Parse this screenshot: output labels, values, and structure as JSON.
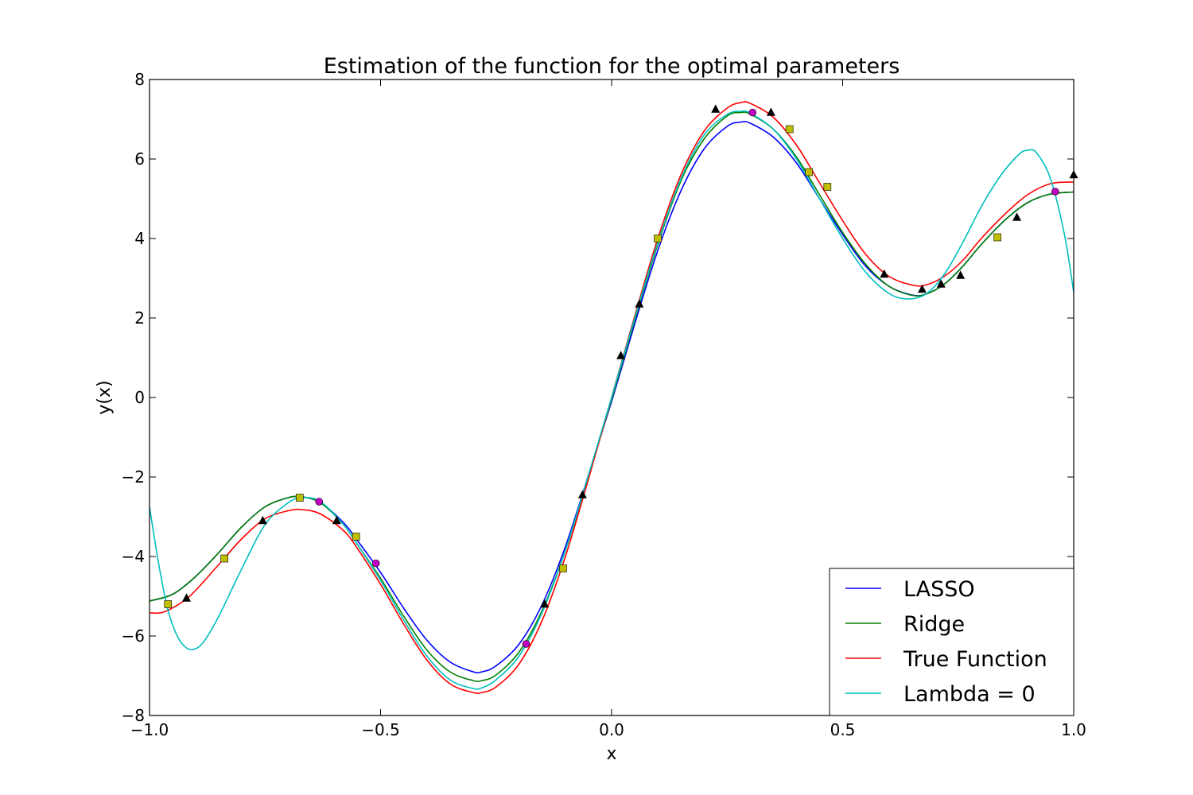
{
  "chart_data": {
    "type": "line",
    "title": "Estimation of the function for the optimal parameters",
    "xlabel": "x",
    "ylabel": "y(x)",
    "xlim": [
      -1.0,
      1.0
    ],
    "ylim": [
      -8,
      8
    ],
    "xticks": [
      -1.0,
      -0.5,
      0.0,
      0.5,
      1.0
    ],
    "xtick_labels": [
      "−1.0",
      "−0.5",
      "0.0",
      "0.5",
      "1.0"
    ],
    "yticks": [
      -8,
      -6,
      -4,
      -2,
      0,
      2,
      4,
      6,
      8
    ],
    "ytick_labels": [
      "−8",
      "−6",
      "−4",
      "−2",
      "0",
      "2",
      "4",
      "6",
      "8"
    ],
    "grid": false,
    "legend": {
      "placement": "lower-right"
    },
    "series": [
      {
        "name": "LASSO",
        "color": "#0000ff",
        "points": [
          [
            -1.0,
            -5.12
          ],
          [
            -0.95,
            -4.95
          ],
          [
            -0.9,
            -4.5
          ],
          [
            -0.85,
            -3.9
          ],
          [
            -0.8,
            -3.25
          ],
          [
            -0.75,
            -2.75
          ],
          [
            -0.7,
            -2.52
          ],
          [
            -0.67,
            -2.5
          ],
          [
            -0.63,
            -2.65
          ],
          [
            -0.58,
            -3.15
          ],
          [
            -0.55,
            -3.6
          ],
          [
            -0.5,
            -4.4
          ],
          [
            -0.45,
            -5.3
          ],
          [
            -0.4,
            -6.1
          ],
          [
            -0.35,
            -6.65
          ],
          [
            -0.3,
            -6.9
          ],
          [
            -0.28,
            -6.9
          ],
          [
            -0.25,
            -6.75
          ],
          [
            -0.2,
            -6.2
          ],
          [
            -0.15,
            -5.2
          ],
          [
            -0.1,
            -3.75
          ],
          [
            -0.05,
            -1.95
          ],
          [
            0.0,
            -0.1
          ],
          [
            0.05,
            1.85
          ],
          [
            0.1,
            3.7
          ],
          [
            0.15,
            5.2
          ],
          [
            0.2,
            6.25
          ],
          [
            0.25,
            6.82
          ],
          [
            0.28,
            6.93
          ],
          [
            0.3,
            6.9
          ],
          [
            0.35,
            6.55
          ],
          [
            0.4,
            5.9
          ],
          [
            0.45,
            5.0
          ],
          [
            0.5,
            4.1
          ],
          [
            0.55,
            3.3
          ],
          [
            0.6,
            2.8
          ],
          [
            0.65,
            2.58
          ],
          [
            0.68,
            2.6
          ],
          [
            0.72,
            2.85
          ],
          [
            0.76,
            3.3
          ],
          [
            0.8,
            3.85
          ],
          [
            0.85,
            4.45
          ],
          [
            0.9,
            4.9
          ],
          [
            0.95,
            5.12
          ],
          [
            1.0,
            5.17
          ]
        ]
      },
      {
        "name": "Ridge",
        "color": "#008000",
        "points": [
          [
            -1.0,
            -5.12
          ],
          [
            -0.95,
            -4.95
          ],
          [
            -0.9,
            -4.5
          ],
          [
            -0.85,
            -3.9
          ],
          [
            -0.8,
            -3.25
          ],
          [
            -0.75,
            -2.75
          ],
          [
            -0.7,
            -2.52
          ],
          [
            -0.67,
            -2.5
          ],
          [
            -0.63,
            -2.65
          ],
          [
            -0.58,
            -3.2
          ],
          [
            -0.55,
            -3.7
          ],
          [
            -0.5,
            -4.55
          ],
          [
            -0.45,
            -5.5
          ],
          [
            -0.4,
            -6.35
          ],
          [
            -0.35,
            -6.9
          ],
          [
            -0.3,
            -7.12
          ],
          [
            -0.28,
            -7.12
          ],
          [
            -0.25,
            -6.98
          ],
          [
            -0.2,
            -6.4
          ],
          [
            -0.15,
            -5.35
          ],
          [
            -0.1,
            -3.85
          ],
          [
            -0.05,
            -2.0
          ],
          [
            0.0,
            -0.05
          ],
          [
            0.05,
            1.95
          ],
          [
            0.1,
            3.85
          ],
          [
            0.15,
            5.45
          ],
          [
            0.2,
            6.5
          ],
          [
            0.25,
            7.08
          ],
          [
            0.28,
            7.17
          ],
          [
            0.3,
            7.13
          ],
          [
            0.35,
            6.75
          ],
          [
            0.4,
            6.05
          ],
          [
            0.45,
            5.1
          ],
          [
            0.5,
            4.15
          ],
          [
            0.55,
            3.35
          ],
          [
            0.6,
            2.8
          ],
          [
            0.65,
            2.57
          ],
          [
            0.68,
            2.6
          ],
          [
            0.72,
            2.85
          ],
          [
            0.76,
            3.3
          ],
          [
            0.8,
            3.85
          ],
          [
            0.85,
            4.45
          ],
          [
            0.9,
            4.9
          ],
          [
            0.95,
            5.12
          ],
          [
            1.0,
            5.17
          ]
        ]
      },
      {
        "name": "True Function",
        "color": "#ff0000",
        "points": [
          [
            -1.0,
            -5.42
          ],
          [
            -0.97,
            -5.4
          ],
          [
            -0.93,
            -5.15
          ],
          [
            -0.9,
            -4.85
          ],
          [
            -0.85,
            -4.2
          ],
          [
            -0.8,
            -3.55
          ],
          [
            -0.75,
            -3.05
          ],
          [
            -0.7,
            -2.85
          ],
          [
            -0.67,
            -2.82
          ],
          [
            -0.63,
            -2.93
          ],
          [
            -0.58,
            -3.35
          ],
          [
            -0.55,
            -3.8
          ],
          [
            -0.5,
            -4.7
          ],
          [
            -0.45,
            -5.7
          ],
          [
            -0.4,
            -6.6
          ],
          [
            -0.35,
            -7.2
          ],
          [
            -0.3,
            -7.42
          ],
          [
            -0.28,
            -7.42
          ],
          [
            -0.25,
            -7.28
          ],
          [
            -0.2,
            -6.7
          ],
          [
            -0.15,
            -5.6
          ],
          [
            -0.1,
            -4.0
          ],
          [
            -0.05,
            -2.05
          ],
          [
            0.0,
            0.0
          ],
          [
            0.05,
            2.05
          ],
          [
            0.1,
            4.0
          ],
          [
            0.15,
            5.6
          ],
          [
            0.2,
            6.7
          ],
          [
            0.25,
            7.28
          ],
          [
            0.28,
            7.42
          ],
          [
            0.3,
            7.4
          ],
          [
            0.35,
            7.05
          ],
          [
            0.4,
            6.35
          ],
          [
            0.45,
            5.4
          ],
          [
            0.5,
            4.45
          ],
          [
            0.55,
            3.6
          ],
          [
            0.6,
            3.05
          ],
          [
            0.65,
            2.83
          ],
          [
            0.68,
            2.83
          ],
          [
            0.72,
            3.05
          ],
          [
            0.76,
            3.45
          ],
          [
            0.8,
            4.0
          ],
          [
            0.85,
            4.6
          ],
          [
            0.9,
            5.1
          ],
          [
            0.95,
            5.38
          ],
          [
            1.0,
            5.42
          ]
        ]
      },
      {
        "name": "Lambda = 0",
        "color": "#00bfbf",
        "points": [
          [
            -1.0,
            -2.75
          ],
          [
            -0.98,
            -4.2
          ],
          [
            -0.96,
            -5.35
          ],
          [
            -0.94,
            -6.0
          ],
          [
            -0.92,
            -6.3
          ],
          [
            -0.9,
            -6.32
          ],
          [
            -0.88,
            -6.1
          ],
          [
            -0.85,
            -5.5
          ],
          [
            -0.8,
            -4.3
          ],
          [
            -0.75,
            -3.2
          ],
          [
            -0.7,
            -2.65
          ],
          [
            -0.67,
            -2.52
          ],
          [
            -0.63,
            -2.62
          ],
          [
            -0.58,
            -3.2
          ],
          [
            -0.55,
            -3.7
          ],
          [
            -0.5,
            -4.6
          ],
          [
            -0.45,
            -5.6
          ],
          [
            -0.4,
            -6.5
          ],
          [
            -0.35,
            -7.1
          ],
          [
            -0.3,
            -7.32
          ],
          [
            -0.28,
            -7.3
          ],
          [
            -0.25,
            -7.1
          ],
          [
            -0.2,
            -6.5
          ],
          [
            -0.15,
            -5.4
          ],
          [
            -0.1,
            -3.85
          ],
          [
            -0.05,
            -1.95
          ],
          [
            0.0,
            0.0
          ],
          [
            0.05,
            2.0
          ],
          [
            0.1,
            3.9
          ],
          [
            0.15,
            5.5
          ],
          [
            0.2,
            6.6
          ],
          [
            0.25,
            7.12
          ],
          [
            0.28,
            7.2
          ],
          [
            0.3,
            7.15
          ],
          [
            0.35,
            6.75
          ],
          [
            0.4,
            6.0
          ],
          [
            0.45,
            5.0
          ],
          [
            0.5,
            4.0
          ],
          [
            0.55,
            3.15
          ],
          [
            0.6,
            2.62
          ],
          [
            0.64,
            2.48
          ],
          [
            0.68,
            2.6
          ],
          [
            0.72,
            3.1
          ],
          [
            0.76,
            3.9
          ],
          [
            0.8,
            4.8
          ],
          [
            0.84,
            5.55
          ],
          [
            0.88,
            6.1
          ],
          [
            0.9,
            6.22
          ],
          [
            0.92,
            6.15
          ],
          [
            0.95,
            5.5
          ],
          [
            0.98,
            4.1
          ],
          [
            1.0,
            2.65
          ]
        ]
      }
    ],
    "markers": [
      {
        "shape": "triangle",
        "color": "#000000",
        "points": [
          [
            -0.92,
            -5.05
          ],
          [
            -0.755,
            -3.1
          ],
          [
            -0.595,
            -3.1
          ],
          [
            -0.145,
            -5.2
          ],
          [
            -0.063,
            -2.45
          ],
          [
            0.02,
            1.05
          ],
          [
            0.06,
            2.35
          ],
          [
            0.225,
            7.25
          ],
          [
            0.345,
            7.17
          ],
          [
            0.59,
            3.1
          ],
          [
            0.672,
            2.72
          ],
          [
            0.713,
            2.85
          ],
          [
            0.755,
            3.07
          ],
          [
            0.877,
            4.53
          ],
          [
            1.0,
            5.6
          ]
        ]
      },
      {
        "shape": "square",
        "color": "#bfbf00",
        "points": [
          [
            -0.96,
            -5.2
          ],
          [
            -0.838,
            -4.05
          ],
          [
            -0.675,
            -2.52
          ],
          [
            -0.553,
            -3.5
          ],
          [
            -0.105,
            -4.3
          ],
          [
            0.1,
            4.0
          ],
          [
            0.385,
            6.75
          ],
          [
            0.427,
            5.67
          ],
          [
            0.467,
            5.3
          ],
          [
            0.835,
            4.03
          ]
        ]
      },
      {
        "shape": "circle",
        "color": "#bf00bf",
        "points": [
          [
            -0.633,
            -2.62
          ],
          [
            -0.51,
            -4.17
          ],
          [
            -0.185,
            -6.2
          ],
          [
            0.305,
            7.17
          ],
          [
            0.96,
            5.18
          ]
        ]
      }
    ]
  }
}
